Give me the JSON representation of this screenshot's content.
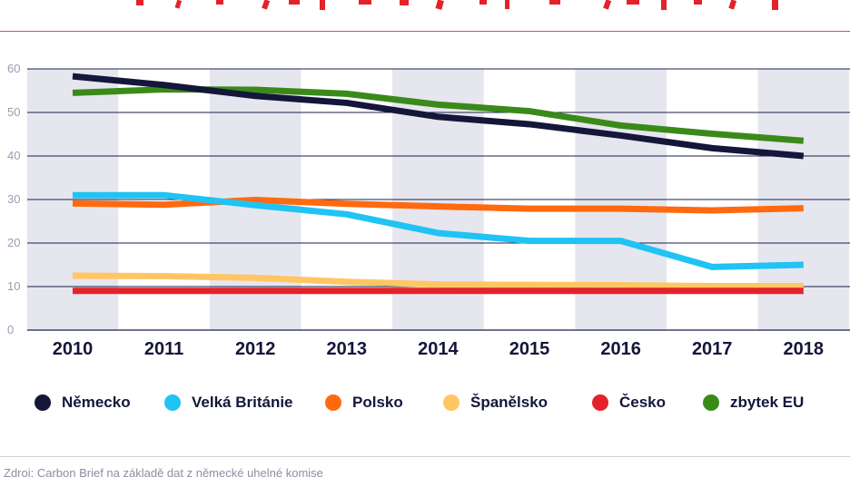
{
  "chart_data": {
    "type": "line",
    "title": "",
    "xlabel": "",
    "ylabel": "",
    "ylim": [
      0,
      60
    ],
    "yticks": [
      0,
      10,
      20,
      30,
      40,
      50,
      60
    ],
    "x": [
      "2010",
      "2011",
      "2012",
      "2013",
      "2014",
      "2015",
      "2016",
      "2017",
      "2018"
    ],
    "series": [
      {
        "name": "zbytek EU",
        "color": "#3a8a1a",
        "values": [
          54.5,
          55.3,
          55.2,
          54.3,
          51.8,
          50.3,
          47.0,
          45.1,
          43.5
        ]
      },
      {
        "name": "Německo",
        "color": "#14163a",
        "values": [
          58.3,
          56.3,
          53.8,
          52.2,
          49.0,
          47.3,
          44.7,
          41.8,
          40.0
        ]
      },
      {
        "name": "Polsko",
        "color": "#ff6a10",
        "values": [
          29.1,
          28.8,
          29.9,
          29.0,
          28.4,
          27.9,
          27.9,
          27.5,
          28.0
        ]
      },
      {
        "name": "Velká Británie",
        "color": "#1fc3f4",
        "values": [
          31.0,
          31.0,
          28.7,
          26.6,
          22.3,
          20.5,
          20.5,
          14.5,
          15.0
        ]
      },
      {
        "name": "Španělsko",
        "color": "#ffc663",
        "values": [
          12.5,
          12.4,
          12.0,
          11.1,
          10.5,
          10.4,
          10.3,
          10.1,
          10.1
        ]
      },
      {
        "name": "Česko",
        "color": "#e42229",
        "values": [
          9.0,
          9.0,
          9.0,
          9.0,
          9.0,
          9.0,
          9.0,
          9.0,
          9.0
        ]
      }
    ],
    "legend_order": [
      "Německo",
      "Velká Británie",
      "Polsko",
      "Španělsko",
      "Česko",
      "zbytek EU"
    ],
    "grid": true,
    "legend_position": "bottom"
  },
  "footer": {
    "source": "Zdroj: Carbon Brief na základě dat z německé uhelné komise"
  },
  "colors": {
    "band": "#e6e6ee",
    "grid": "#1c1f4a",
    "axis_text": "#9a9db0",
    "x_text": "#14163a",
    "accent_rule": "#e8444a"
  }
}
